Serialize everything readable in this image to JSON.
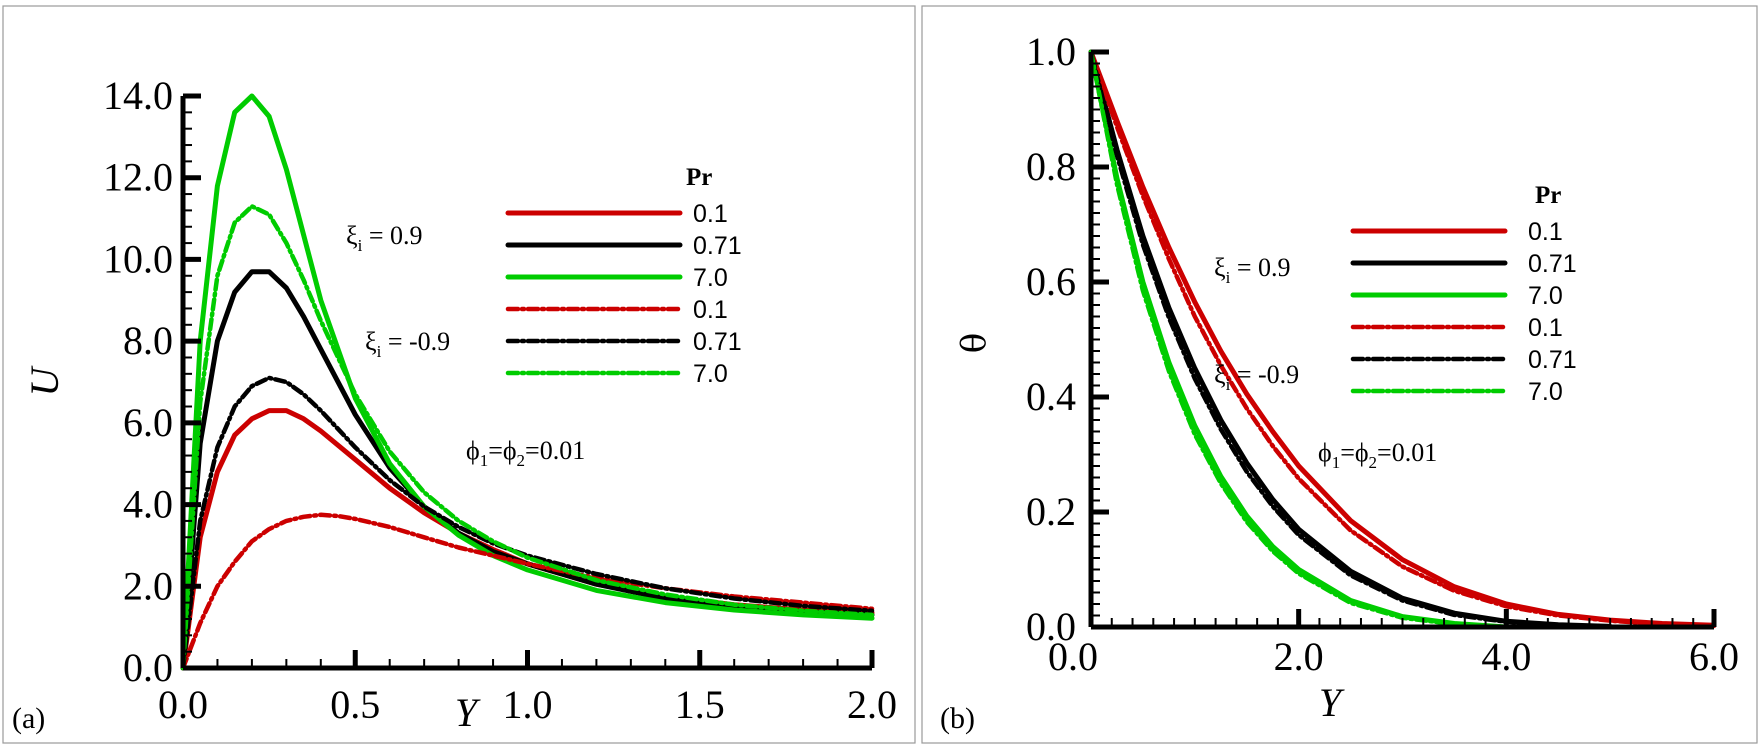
{
  "colors": {
    "red": "#cc0000",
    "black": "#000000",
    "green": "#00cc00"
  },
  "chart_data": [
    {
      "type": "line",
      "panel_label": "(a)",
      "xlabel": "Y",
      "ylabel": "U",
      "xlim": [
        0,
        2.0
      ],
      "ylim": [
        0,
        14.0
      ],
      "x_ticks": [
        "0.0",
        "0.5",
        "1.0",
        "1.5",
        "2.0"
      ],
      "y_ticks": [
        "0.0",
        "2.0",
        "4.0",
        "6.0",
        "8.0",
        "10.0",
        "12.0",
        "14.0"
      ],
      "legend": {
        "title": "Pr",
        "labels": [
          "0.1",
          "0.71",
          "7.0",
          "0.1",
          "0.71",
          "7.0"
        ]
      },
      "annotations": {
        "xi_pos": {
          "base": "ξ",
          "sub": "i",
          "rest": " = 0.9"
        },
        "xi_neg": {
          "base": "ξ",
          "sub": "i",
          "rest": " = -0.9"
        },
        "phi": {
          "a": "ϕ",
          "a_sub": "1",
          "mid": "=ϕ",
          "b_sub": "2",
          "rest": "=0.01"
        }
      },
      "series": [
        {
          "legend": "0.1",
          "xi": 0.9,
          "style": "solid",
          "color": "red",
          "x": [
            0,
            0.05,
            0.1,
            0.15,
            0.2,
            0.25,
            0.3,
            0.35,
            0.4,
            0.5,
            0.6,
            0.7,
            0.8,
            0.9,
            1.0,
            1.2,
            1.4,
            1.6,
            1.8,
            2.0
          ],
          "y": [
            0,
            3.2,
            4.8,
            5.7,
            6.1,
            6.3,
            6.3,
            6.1,
            5.8,
            5.1,
            4.4,
            3.8,
            3.3,
            2.9,
            2.55,
            2.05,
            1.75,
            1.55,
            1.42,
            1.35
          ]
        },
        {
          "legend": "0.71",
          "xi": 0.9,
          "style": "solid",
          "color": "black",
          "x": [
            0,
            0.05,
            0.1,
            0.15,
            0.2,
            0.25,
            0.3,
            0.35,
            0.4,
            0.5,
            0.6,
            0.7,
            0.8,
            0.9,
            1.0,
            1.2,
            1.4,
            1.6,
            1.8,
            2.0
          ],
          "y": [
            0,
            5.5,
            8.0,
            9.2,
            9.7,
            9.7,
            9.3,
            8.6,
            7.8,
            6.2,
            4.9,
            3.95,
            3.3,
            2.85,
            2.55,
            2.05,
            1.7,
            1.5,
            1.38,
            1.3
          ]
        },
        {
          "legend": "7.0",
          "xi": 0.9,
          "style": "solid",
          "color": "green",
          "x": [
            0,
            0.05,
            0.1,
            0.15,
            0.2,
            0.25,
            0.3,
            0.35,
            0.4,
            0.5,
            0.6,
            0.7,
            0.8,
            0.9,
            1.0,
            1.2,
            1.4,
            1.6,
            1.8,
            2.0
          ],
          "y": [
            0,
            8.0,
            11.8,
            13.6,
            14.0,
            13.5,
            12.2,
            10.6,
            9.0,
            6.6,
            5.0,
            3.95,
            3.25,
            2.75,
            2.4,
            1.9,
            1.6,
            1.42,
            1.3,
            1.22
          ]
        },
        {
          "legend": "0.1",
          "xi": -0.9,
          "style": "dashdot",
          "color": "red",
          "x": [
            0,
            0.05,
            0.1,
            0.15,
            0.2,
            0.25,
            0.3,
            0.35,
            0.4,
            0.45,
            0.5,
            0.6,
            0.7,
            0.8,
            0.9,
            1.0,
            1.2,
            1.4,
            1.6,
            1.8,
            2.0
          ],
          "y": [
            0,
            1.1,
            2.0,
            2.6,
            3.1,
            3.4,
            3.6,
            3.7,
            3.75,
            3.72,
            3.65,
            3.45,
            3.2,
            2.95,
            2.75,
            2.55,
            2.2,
            1.95,
            1.75,
            1.6,
            1.45
          ]
        },
        {
          "legend": "0.71",
          "xi": -0.9,
          "style": "dashdot",
          "color": "black",
          "x": [
            0,
            0.05,
            0.1,
            0.15,
            0.2,
            0.25,
            0.3,
            0.35,
            0.4,
            0.5,
            0.6,
            0.7,
            0.8,
            0.9,
            1.0,
            1.2,
            1.4,
            1.6,
            1.8,
            2.0
          ],
          "y": [
            0,
            3.6,
            5.4,
            6.4,
            6.9,
            7.1,
            7.0,
            6.7,
            6.3,
            5.4,
            4.6,
            3.95,
            3.45,
            3.05,
            2.75,
            2.3,
            1.95,
            1.7,
            1.52,
            1.4
          ]
        },
        {
          "legend": "7.0",
          "xi": -0.9,
          "style": "dashdot",
          "color": "green",
          "x": [
            0,
            0.05,
            0.1,
            0.15,
            0.2,
            0.25,
            0.3,
            0.35,
            0.4,
            0.5,
            0.6,
            0.7,
            0.8,
            0.9,
            1.0,
            1.2,
            1.4,
            1.6,
            1.8,
            2.0
          ],
          "y": [
            0,
            6.5,
            9.6,
            10.9,
            11.3,
            11.1,
            10.4,
            9.5,
            8.5,
            6.7,
            5.3,
            4.3,
            3.6,
            3.1,
            2.7,
            2.15,
            1.8,
            1.55,
            1.4,
            1.3
          ]
        }
      ]
    },
    {
      "type": "line",
      "panel_label": "(b)",
      "xlabel": "Y",
      "ylabel": "θ",
      "xlim": [
        0,
        6.0
      ],
      "ylim": [
        0,
        1.0
      ],
      "x_ticks": [
        "0.0",
        "2.0",
        "4.0",
        "6.0"
      ],
      "y_ticks": [
        "0.0",
        "0.2",
        "0.4",
        "0.6",
        "0.8",
        "1.0"
      ],
      "legend": {
        "title": "Pr",
        "labels": [
          "0.1",
          "0.71",
          "7.0",
          "0.1",
          "0.71",
          "7.0"
        ]
      },
      "annotations": {
        "xi_pos": {
          "base": "ξ",
          "sub": "i",
          "rest": " = 0.9"
        },
        "xi_neg": {
          "base": "ξ",
          "sub": "i",
          "rest": " = -0.9"
        },
        "phi": {
          "a": "ϕ",
          "a_sub": "1",
          "mid": "=ϕ",
          "b_sub": "2",
          "rest": "=0.01"
        }
      },
      "series": [
        {
          "legend": "0.1",
          "xi": 0.9,
          "style": "solid",
          "color": "red",
          "x": [
            0,
            0.25,
            0.5,
            0.75,
            1.0,
            1.25,
            1.5,
            1.75,
            2.0,
            2.5,
            3.0,
            3.5,
            4.0,
            4.5,
            5.0,
            5.5,
            6.0
          ],
          "y": [
            1.0,
            0.88,
            0.765,
            0.66,
            0.565,
            0.48,
            0.405,
            0.34,
            0.28,
            0.185,
            0.117,
            0.07,
            0.04,
            0.022,
            0.012,
            0.006,
            0.003
          ]
        },
        {
          "legend": "0.71",
          "xi": 0.9,
          "style": "solid",
          "color": "black",
          "x": [
            0,
            0.25,
            0.5,
            0.75,
            1.0,
            1.25,
            1.5,
            1.75,
            2.0,
            2.5,
            3.0,
            3.5,
            4.0,
            4.5,
            5.0
          ],
          "y": [
            1.0,
            0.83,
            0.68,
            0.555,
            0.45,
            0.36,
            0.285,
            0.222,
            0.17,
            0.097,
            0.05,
            0.024,
            0.01,
            0.004,
            0.001
          ]
        },
        {
          "legend": "7.0",
          "xi": 0.9,
          "style": "solid",
          "color": "green",
          "x": [
            0,
            0.25,
            0.5,
            0.75,
            1.0,
            1.25,
            1.5,
            1.75,
            2.0,
            2.5,
            3.0,
            3.5,
            4.0
          ],
          "y": [
            1.0,
            0.78,
            0.6,
            0.46,
            0.35,
            0.262,
            0.193,
            0.14,
            0.1,
            0.046,
            0.018,
            0.006,
            0.0
          ]
        },
        {
          "legend": "0.1",
          "xi": -0.9,
          "style": "dashdot",
          "color": "red",
          "x": [
            0,
            0.25,
            0.5,
            0.75,
            1.0,
            1.25,
            1.5,
            1.75,
            2.0,
            2.5,
            3.0,
            3.5,
            4.0,
            4.5,
            5.0,
            5.5,
            6.0
          ],
          "y": [
            1.0,
            0.87,
            0.75,
            0.64,
            0.54,
            0.455,
            0.38,
            0.315,
            0.258,
            0.168,
            0.105,
            0.063,
            0.036,
            0.02,
            0.011,
            0.005,
            0.002
          ]
        },
        {
          "legend": "0.71",
          "xi": -0.9,
          "style": "dashdot",
          "color": "black",
          "x": [
            0,
            0.25,
            0.5,
            0.75,
            1.0,
            1.25,
            1.5,
            1.75,
            2.0,
            2.5,
            3.0,
            3.5,
            4.0,
            4.5,
            5.0
          ],
          "y": [
            1.0,
            0.82,
            0.665,
            0.538,
            0.432,
            0.344,
            0.27,
            0.21,
            0.16,
            0.09,
            0.046,
            0.021,
            0.009,
            0.003,
            0.001
          ]
        },
        {
          "legend": "7.0",
          "xi": -0.9,
          "style": "dashdot",
          "color": "green",
          "x": [
            0,
            0.25,
            0.5,
            0.75,
            1.0,
            1.25,
            1.5,
            1.75,
            2.0,
            2.5,
            3.0,
            3.5,
            4.0
          ],
          "y": [
            1.0,
            0.77,
            0.585,
            0.445,
            0.335,
            0.25,
            0.183,
            0.132,
            0.093,
            0.042,
            0.016,
            0.005,
            0.0
          ]
        }
      ]
    }
  ]
}
